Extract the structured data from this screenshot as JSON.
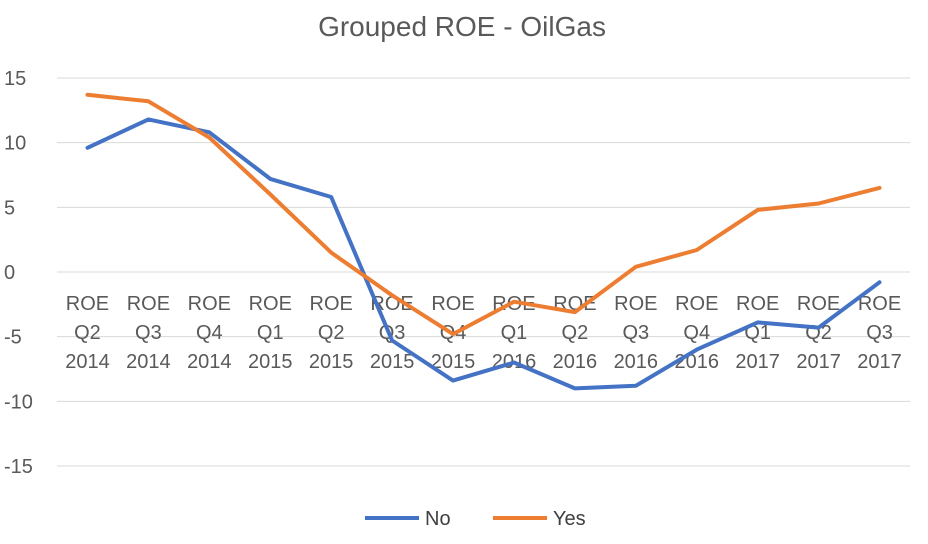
{
  "chart_data": {
    "type": "line",
    "title": "Grouped ROE - OilGas",
    "xlabel": "",
    "ylabel": "",
    "ylim": [
      -15,
      15
    ],
    "yticks": [
      15,
      10,
      5,
      0,
      -5,
      -10,
      -15
    ],
    "grid": true,
    "legend_position": "bottom",
    "categories": [
      [
        "ROE",
        "Q2",
        "2014"
      ],
      [
        "ROE",
        "Q3",
        "2014"
      ],
      [
        "ROE",
        "Q4",
        "2014"
      ],
      [
        "ROE",
        "Q1",
        "2015"
      ],
      [
        "ROE",
        "Q2",
        "2015"
      ],
      [
        "ROE",
        "Q3",
        "2015"
      ],
      [
        "ROE",
        "Q4",
        "2015"
      ],
      [
        "ROE",
        "Q1",
        "2016"
      ],
      [
        "ROE",
        "Q2",
        "2016"
      ],
      [
        "ROE",
        "Q3",
        "2016"
      ],
      [
        "ROE",
        "Q4",
        "2016"
      ],
      [
        "ROE",
        "Q1",
        "2017"
      ],
      [
        "ROE",
        "Q2",
        "2017"
      ],
      [
        "ROE",
        "Q3",
        "2017"
      ]
    ],
    "series": [
      {
        "name": "No",
        "color": "#4472C4",
        "values": [
          9.6,
          11.8,
          10.8,
          7.2,
          5.8,
          -5.3,
          -8.4,
          -7.0,
          -9.0,
          -8.8,
          -6.0,
          -3.9,
          -4.3,
          -0.8
        ]
      },
      {
        "name": "Yes",
        "color": "#ED7D31",
        "values": [
          13.7,
          13.2,
          10.4,
          6.0,
          1.5,
          -1.8,
          -4.8,
          -2.3,
          -3.1,
          0.4,
          1.7,
          4.8,
          5.3,
          6.5
        ]
      }
    ]
  }
}
